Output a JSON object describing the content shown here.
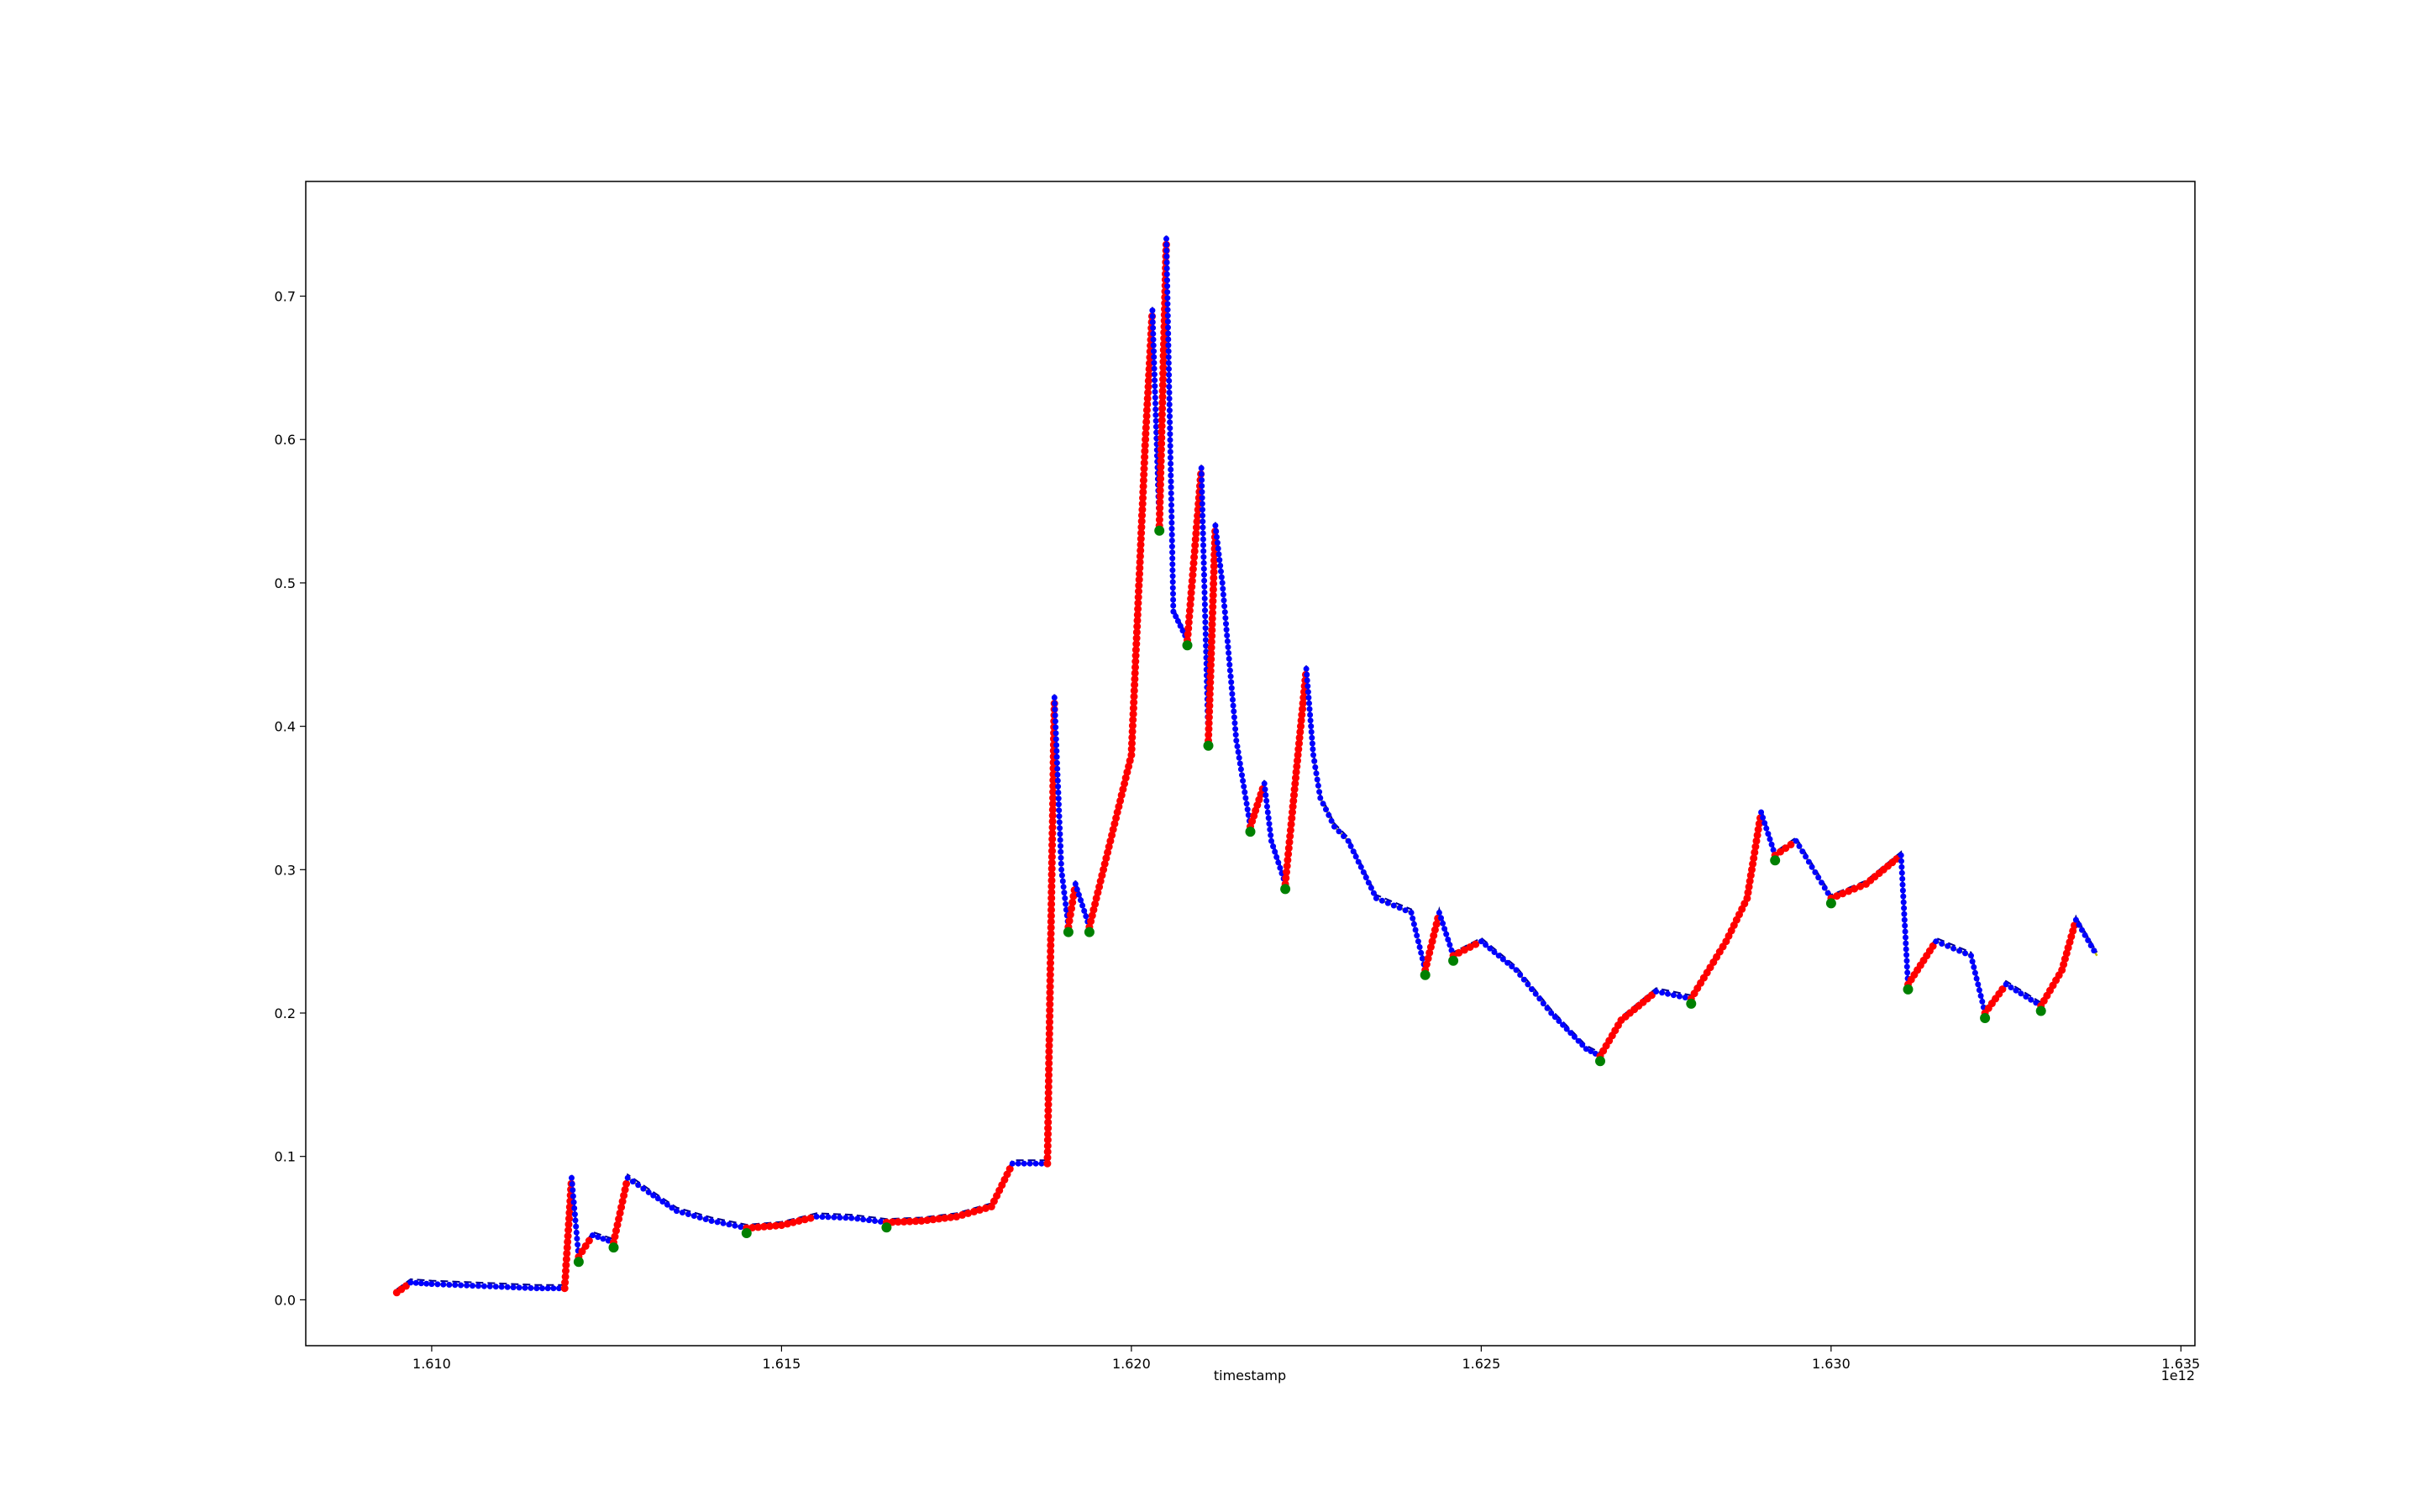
{
  "chart_data": {
    "type": "line",
    "title": "",
    "xlabel": "timestamp",
    "ylabel": "",
    "x_offset_label": "1e12",
    "xlim": [
      1.6082,
      1.6352
    ],
    "ylim": [
      -0.032,
      0.78
    ],
    "x_ticks": [
      1.61,
      1.615,
      1.62,
      1.625,
      1.63,
      1.635
    ],
    "x_tick_labels": [
      "1.610",
      "1.615",
      "1.620",
      "1.625",
      "1.630",
      "1.635"
    ],
    "y_ticks": [
      0.0,
      0.1,
      0.2,
      0.3,
      0.4,
      0.5,
      0.6,
      0.7
    ],
    "y_tick_labels": [
      "0.0",
      "0.1",
      "0.2",
      "0.3",
      "0.4",
      "0.5",
      "0.6",
      "0.7"
    ],
    "grid": false,
    "legend": "none",
    "colors": {
      "price_line": "#bfbf00",
      "dashed_line": "#00008b",
      "red_markers": "#ff0000",
      "blue_markers": "#0000ff",
      "green_markers": "#008000",
      "magenta_markers": "#c0006a"
    },
    "x": [
      1.6095,
      1.6097,
      1.61,
      1.6105,
      1.611,
      1.6115,
      1.6119,
      1.612,
      1.6121,
      1.6123,
      1.6126,
      1.6128,
      1.6131,
      1.6135,
      1.614,
      1.6145,
      1.615,
      1.6155,
      1.616,
      1.6165,
      1.617,
      1.6175,
      1.618,
      1.6183,
      1.6188,
      1.6189,
      1.619,
      1.6191,
      1.6192,
      1.6194,
      1.6196,
      1.6198,
      1.62,
      1.6202,
      1.6203,
      1.6204,
      1.6205,
      1.6206,
      1.6207,
      1.6208,
      1.621,
      1.6211,
      1.6212,
      1.6213,
      1.6215,
      1.6217,
      1.6219,
      1.622,
      1.6222,
      1.6223,
      1.6225,
      1.6226,
      1.6227,
      1.6229,
      1.6231,
      1.6235,
      1.624,
      1.6242,
      1.6244,
      1.6246,
      1.625,
      1.6255,
      1.626,
      1.6265,
      1.6267,
      1.627,
      1.6275,
      1.628,
      1.6285,
      1.6288,
      1.629,
      1.6292,
      1.6295,
      1.63,
      1.6305,
      1.631,
      1.6311,
      1.6315,
      1.632,
      1.6322,
      1.6325,
      1.633,
      1.6333,
      1.6335,
      1.6338
    ],
    "series": [
      {
        "values": [
          0.005,
          0.012,
          0.011,
          0.01,
          0.009,
          0.008,
          0.008,
          0.085,
          0.03,
          0.045,
          0.04,
          0.085,
          0.075,
          0.062,
          0.055,
          0.05,
          0.052,
          0.058,
          0.057,
          0.054,
          0.055,
          0.058,
          0.065,
          0.095,
          0.095,
          0.42,
          0.3,
          0.26,
          0.29,
          0.26,
          0.3,
          0.34,
          0.38,
          0.6,
          0.69,
          0.54,
          0.74,
          0.48,
          0.47,
          0.46,
          0.58,
          0.39,
          0.54,
          0.5,
          0.39,
          0.33,
          0.36,
          0.32,
          0.29,
          0.34,
          0.44,
          0.38,
          0.35,
          0.33,
          0.32,
          0.28,
          0.27,
          0.23,
          0.27,
          0.24,
          0.25,
          0.23,
          0.2,
          0.175,
          0.17,
          0.195,
          0.215,
          0.21,
          0.25,
          0.28,
          0.34,
          0.31,
          0.32,
          0.28,
          0.29,
          0.31,
          0.22,
          0.25,
          0.24,
          0.2,
          0.22,
          0.205,
          0.23,
          0.265,
          0.24
        ]
      }
    ]
  }
}
